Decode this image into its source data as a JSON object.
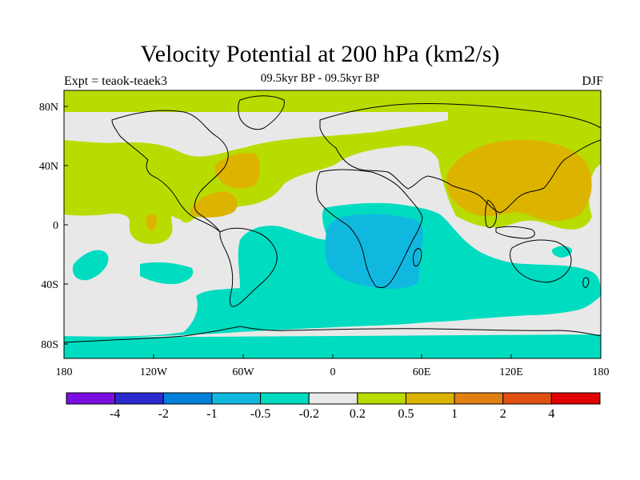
{
  "title": "Velocity Potential at 200 hPa (km2/s)",
  "subtitle": "09.5kyr BP - 09.5kyr BP",
  "left_string": "Expt = teaok-teaek3",
  "right_string": "DJF",
  "map": {
    "lon_range": [
      -180,
      180
    ],
    "lat_range": [
      -90,
      90
    ],
    "x_tick_labels": [
      "180",
      "120W",
      "60W",
      "0",
      "60E",
      "120E",
      "180"
    ],
    "y_tick_labels": [
      "80N",
      "40N",
      "0",
      "40S",
      "80S"
    ],
    "background_color": "#e8e8e8"
  },
  "colorbar": {
    "colors": [
      "#7a10e0",
      "#2a2ad0",
      "#0080d8",
      "#10b8e0",
      "#00dcc0",
      "#e8e8e8",
      "#b8dc00",
      "#dcb400",
      "#e08010",
      "#e05010",
      "#e00000"
    ],
    "labels": [
      "-4",
      "-2",
      "-1",
      "-0.5",
      "-0.2",
      "0.2",
      "0.5",
      "1",
      "2",
      "4"
    ]
  },
  "colors": {
    "gray": "#e8e8e8",
    "yellow_green": "#b8dc00",
    "gold": "#dcb400",
    "cyan_teal": "#00dcc0",
    "sky_blue": "#10b8e0"
  }
}
